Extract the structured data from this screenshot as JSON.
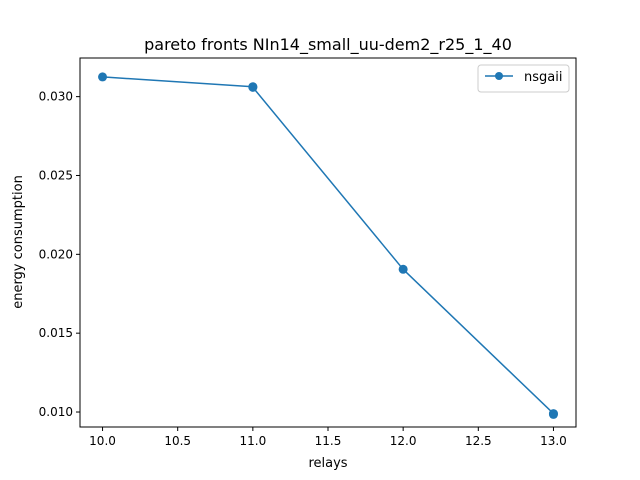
{
  "chart_data": {
    "type": "line",
    "title": "pareto fronts NIn14_small_uu-dem2_r25_1_40",
    "xlabel": "relays",
    "ylabel": "energy consumption",
    "xlim": [
      9.85,
      13.15
    ],
    "ylim": [
      0.00905,
      0.03245
    ],
    "xticks": [
      10.0,
      10.5,
      11.0,
      11.5,
      12.0,
      12.5,
      13.0
    ],
    "xtick_labels": [
      "10.0",
      "10.5",
      "11.0",
      "11.5",
      "12.0",
      "12.5",
      "13.0"
    ],
    "yticks": [
      0.01,
      0.015,
      0.02,
      0.025,
      0.03
    ],
    "ytick_labels": [
      "0.010",
      "0.015",
      "0.020",
      "0.025",
      "0.030"
    ],
    "grid": false,
    "legend_position": "top-right",
    "series": [
      {
        "name": "nsgaii",
        "color": "#1f77b4",
        "marker": "circle",
        "points": [
          {
            "x": 10,
            "y": 0.03125
          },
          {
            "x": 11,
            "y": 0.03063
          },
          {
            "x": 11,
            "y": 0.03059
          },
          {
            "x": 12,
            "y": 0.01905
          },
          {
            "x": 13,
            "y": 0.0099
          },
          {
            "x": 13,
            "y": 0.00985
          }
        ]
      }
    ]
  }
}
